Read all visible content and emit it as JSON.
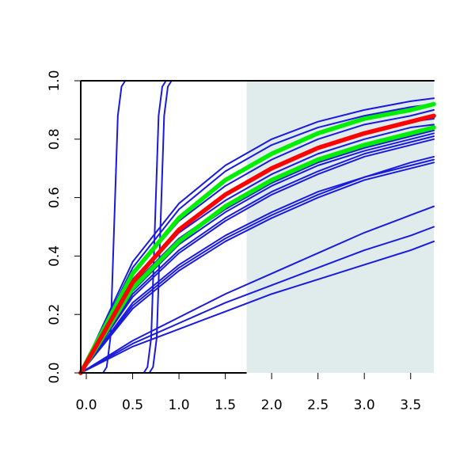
{
  "chart_data": {
    "type": "line",
    "title": "",
    "xlabel": "",
    "ylabel": "",
    "xlim": [
      -0.06,
      3.75
    ],
    "ylim": [
      0.0,
      1.0
    ],
    "x_ticks": [
      0.0,
      0.5,
      1.0,
      1.5,
      2.0,
      2.5,
      3.0,
      3.5
    ],
    "x_tick_labels": [
      "0.0",
      "0.5",
      "1.0",
      "1.5",
      "2.0",
      "2.5",
      "3.0",
      "3.5"
    ],
    "y_ticks": [
      0.0,
      0.2,
      0.4,
      0.6,
      0.8,
      1.0
    ],
    "y_tick_labels": [
      "0.0",
      "0.2",
      "0.4",
      "0.6",
      "0.8",
      "1.0"
    ],
    "grid": false,
    "shaded_region": {
      "x_from": 1.73,
      "x_to": 3.75,
      "color": "#e0ecec"
    },
    "colors": {
      "series": "#1a1adc",
      "highlight_red": "#ff0000",
      "highlight_green": "#00ee00",
      "axis": "#000000"
    },
    "series": [
      {
        "color": "#1a1adc",
        "x": [
          -0.06,
          0.5,
          1.0,
          1.5,
          2.0,
          2.5,
          3.0,
          3.5,
          3.75
        ],
        "y": [
          0.0,
          0.38,
          0.58,
          0.71,
          0.8,
          0.86,
          0.9,
          0.93,
          0.94
        ]
      },
      {
        "color": "#1a1adc",
        "x": [
          -0.06,
          0.5,
          1.0,
          1.5,
          2.0,
          2.5,
          3.0,
          3.5,
          3.75
        ],
        "y": [
          0.0,
          0.36,
          0.56,
          0.69,
          0.78,
          0.84,
          0.88,
          0.91,
          0.92
        ]
      },
      {
        "color": "#1a1adc",
        "x": [
          -0.06,
          0.5,
          1.0,
          1.5,
          2.0,
          2.5,
          3.0,
          3.5,
          3.75
        ],
        "y": [
          0.0,
          0.34,
          0.52,
          0.64,
          0.73,
          0.8,
          0.85,
          0.88,
          0.9
        ]
      },
      {
        "color": "#1a1adc",
        "x": [
          -0.06,
          0.5,
          1.0,
          1.5,
          2.0,
          2.5,
          3.0,
          3.5,
          3.75
        ],
        "y": [
          0.0,
          0.32,
          0.49,
          0.61,
          0.7,
          0.77,
          0.82,
          0.86,
          0.87
        ]
      },
      {
        "color": "#1a1adc",
        "x": [
          -0.06,
          0.5,
          1.0,
          1.5,
          2.0,
          2.5,
          3.0,
          3.5,
          3.75
        ],
        "y": [
          0.0,
          0.31,
          0.48,
          0.59,
          0.68,
          0.75,
          0.8,
          0.84,
          0.85
        ]
      },
      {
        "color": "#1a1adc",
        "x": [
          -0.06,
          0.5,
          1.0,
          1.5,
          2.0,
          2.5,
          3.0,
          3.5,
          3.75
        ],
        "y": [
          0.0,
          0.3,
          0.46,
          0.57,
          0.66,
          0.73,
          0.78,
          0.82,
          0.84
        ]
      },
      {
        "color": "#1a1adc",
        "x": [
          -0.06,
          0.5,
          1.0,
          1.5,
          2.0,
          2.5,
          3.0,
          3.5,
          3.75
        ],
        "y": [
          0.0,
          0.29,
          0.45,
          0.56,
          0.65,
          0.72,
          0.77,
          0.81,
          0.83
        ]
      },
      {
        "color": "#1a1adc",
        "x": [
          -0.06,
          0.5,
          1.0,
          1.5,
          2.0,
          2.5,
          3.0,
          3.5,
          3.75
        ],
        "y": [
          0.0,
          0.28,
          0.44,
          0.55,
          0.64,
          0.71,
          0.76,
          0.8,
          0.82
        ]
      },
      {
        "color": "#1a1adc",
        "x": [
          -0.06,
          0.5,
          1.0,
          1.5,
          2.0,
          2.5,
          3.0,
          3.5,
          3.75
        ],
        "y": [
          0.0,
          0.27,
          0.42,
          0.53,
          0.62,
          0.69,
          0.75,
          0.79,
          0.81
        ]
      },
      {
        "color": "#1a1adc",
        "x": [
          -0.06,
          0.5,
          1.0,
          1.5,
          2.0,
          2.5,
          3.0,
          3.5,
          3.75
        ],
        "y": [
          0.0,
          0.26,
          0.41,
          0.52,
          0.61,
          0.68,
          0.74,
          0.78,
          0.8
        ]
      },
      {
        "color": "#1a1adc",
        "x": [
          -0.06,
          0.5,
          1.0,
          1.5,
          2.0,
          2.5,
          3.0,
          3.5,
          3.75
        ],
        "y": [
          0.0,
          0.24,
          0.37,
          0.47,
          0.55,
          0.62,
          0.67,
          0.72,
          0.74
        ]
      },
      {
        "color": "#1a1adc",
        "x": [
          -0.06,
          0.5,
          1.0,
          1.5,
          2.0,
          2.5,
          3.0,
          3.5,
          3.75
        ],
        "y": [
          0.0,
          0.23,
          0.36,
          0.46,
          0.54,
          0.61,
          0.67,
          0.71,
          0.73
        ]
      },
      {
        "color": "#1a1adc",
        "x": [
          -0.06,
          0.5,
          1.0,
          1.5,
          2.0,
          2.5,
          3.0,
          3.5,
          3.75
        ],
        "y": [
          0.0,
          0.22,
          0.35,
          0.45,
          0.53,
          0.6,
          0.66,
          0.7,
          0.72
        ]
      },
      {
        "color": "#1a1adc",
        "x": [
          -0.06,
          0.5,
          1.0,
          1.5,
          2.0,
          2.5,
          3.0,
          3.5,
          3.75
        ],
        "y": [
          0.0,
          0.11,
          0.19,
          0.27,
          0.34,
          0.41,
          0.48,
          0.54,
          0.57
        ]
      },
      {
        "color": "#1a1adc",
        "x": [
          -0.06,
          0.5,
          1.0,
          1.5,
          2.0,
          2.5,
          3.0,
          3.5,
          3.75
        ],
        "y": [
          0.0,
          0.1,
          0.17,
          0.24,
          0.3,
          0.36,
          0.42,
          0.47,
          0.5
        ]
      },
      {
        "color": "#1a1adc",
        "x": [
          -0.06,
          0.5,
          1.0,
          1.5,
          2.0,
          2.5,
          3.0,
          3.5,
          3.75
        ],
        "y": [
          0.0,
          0.09,
          0.15,
          0.21,
          0.27,
          0.32,
          0.37,
          0.42,
          0.45
        ]
      },
      {
        "color": "#1a1adc",
        "x": [
          -0.06,
          0.18,
          0.22,
          0.26,
          0.3,
          0.34,
          0.38,
          0.42,
          0.46,
          3.75
        ],
        "y": [
          0.0,
          0.0,
          0.02,
          0.12,
          0.5,
          0.88,
          0.98,
          1.0,
          1.0,
          1.0
        ]
      },
      {
        "color": "#1a1adc",
        "x": [
          -0.06,
          0.62,
          0.66,
          0.7,
          0.74,
          0.78,
          0.82,
          0.86,
          0.9,
          3.75
        ],
        "y": [
          0.0,
          0.0,
          0.02,
          0.12,
          0.5,
          0.88,
          0.98,
          1.0,
          1.0,
          1.0
        ]
      },
      {
        "color": "#1a1adc",
        "x": [
          -0.06,
          0.68,
          0.72,
          0.76,
          0.8,
          0.84,
          0.88,
          0.92,
          0.98,
          3.75
        ],
        "y": [
          0.0,
          0.0,
          0.02,
          0.12,
          0.5,
          0.88,
          0.98,
          1.0,
          1.0,
          1.0
        ]
      },
      {
        "color": "#00ee00",
        "x": [
          -0.06,
          0.5,
          1.0,
          1.5,
          2.0,
          2.5,
          3.0,
          3.5,
          3.75
        ],
        "y": [
          0.0,
          0.34,
          0.53,
          0.66,
          0.75,
          0.82,
          0.87,
          0.9,
          0.92
        ]
      },
      {
        "color": "#00ee00",
        "x": [
          -0.06,
          0.5,
          1.0,
          1.5,
          2.0,
          2.5,
          3.0,
          3.5,
          3.75
        ],
        "y": [
          0.0,
          0.29,
          0.45,
          0.57,
          0.66,
          0.73,
          0.78,
          0.82,
          0.84
        ]
      },
      {
        "color": "#ff0000",
        "x": [
          -0.06,
          0.5,
          1.0,
          1.5,
          2.0,
          2.5,
          3.0,
          3.5,
          3.75
        ],
        "y": [
          0.0,
          0.31,
          0.49,
          0.61,
          0.7,
          0.77,
          0.82,
          0.86,
          0.88
        ]
      }
    ]
  }
}
